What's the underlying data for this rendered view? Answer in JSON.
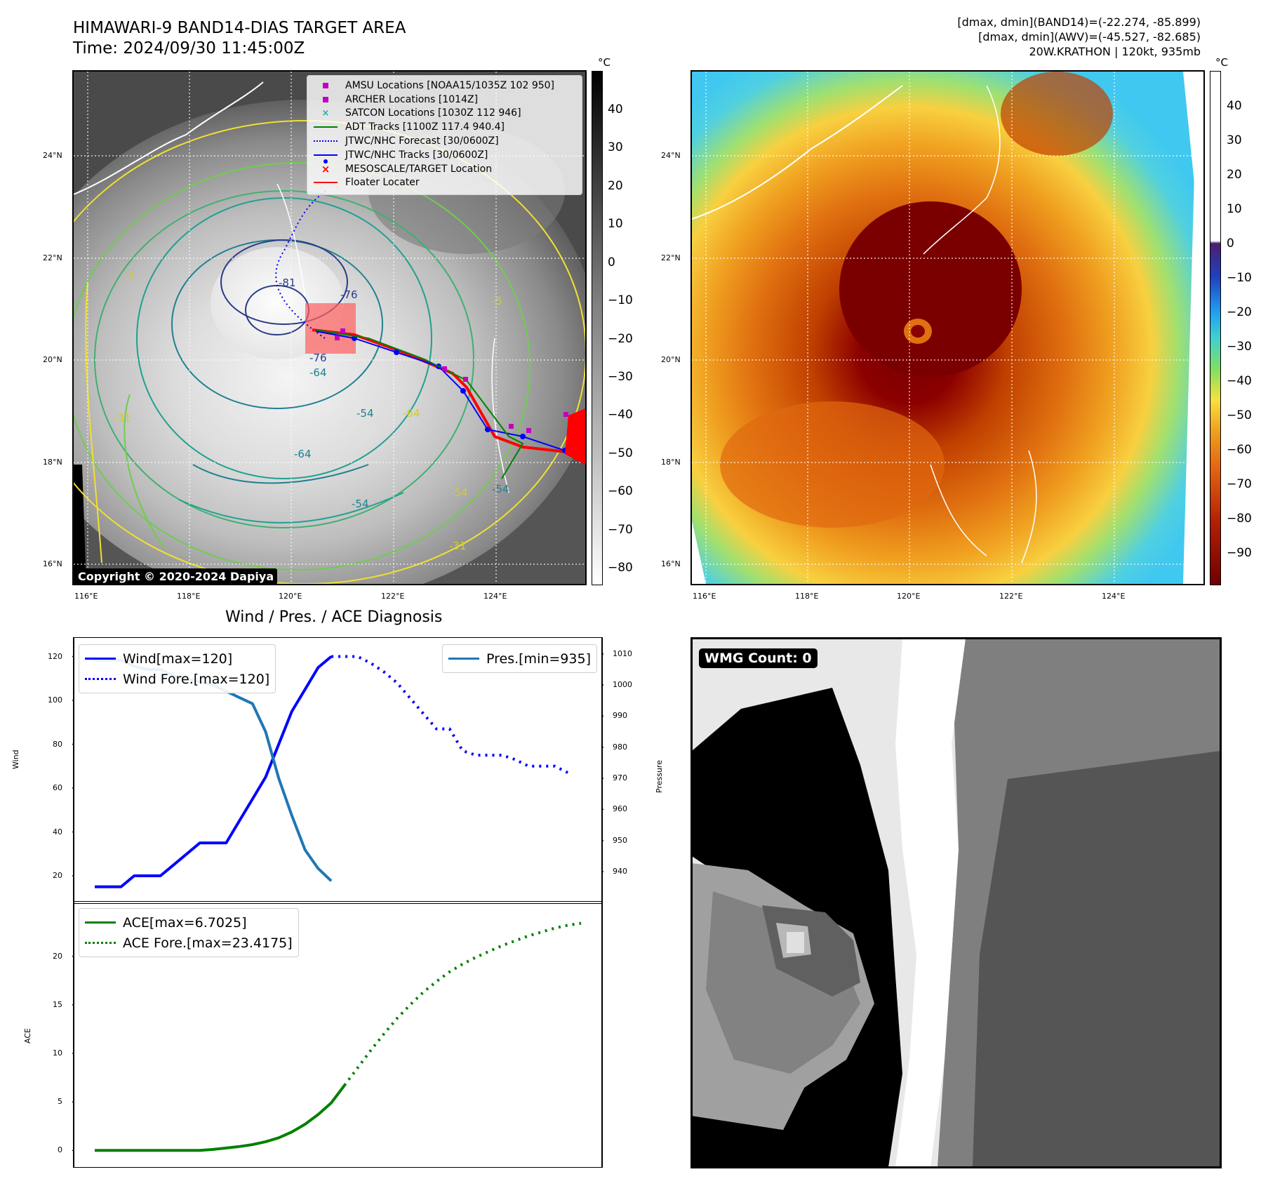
{
  "header": {
    "title_line1": "HIMAWARI-9 BAND14-DIAS TARGET AREA",
    "title_line2": "Time: 2024/09/30 11:45:00Z",
    "right_line1": "[dmax, dmin](BAND14)=(-22.274, -85.899)",
    "right_line2": "[dmax, dmin](AWV)=(-45.527, -82.685)",
    "right_line3": "20W.KRATHON | 120kt, 935mb"
  },
  "maps": {
    "lat_labels": [
      "24°N",
      "22°N",
      "20°N",
      "18°N",
      "16°N"
    ],
    "lon_labels": [
      "116°E",
      "118°E",
      "120°E",
      "122°E",
      "124°E"
    ],
    "copyright": "Copyright © 2020-2024 Dapiya",
    "contour_labels": [
      "-81",
      "-76",
      "-76",
      "-64",
      "-54",
      "-64",
      "-54",
      "-54",
      "-31",
      "-31",
      "-3",
      "-5",
      "-64",
      "-54"
    ],
    "legend": [
      {
        "label": "AMSU Locations [NOAA15/1035Z 102 950]",
        "marker": "square",
        "color": "#c000c0"
      },
      {
        "label": "ARCHER Locations [1014Z]",
        "marker": "square",
        "color": "#c000c0"
      },
      {
        "label": "SATCON Locations [1030Z 112 946]",
        "marker": "x",
        "color": "#20b0b0"
      },
      {
        "label": "ADT Tracks [1100Z 117.4 940.4]",
        "marker": "line",
        "color": "#008000"
      },
      {
        "label": "JTWC/NHC Forecast [30/0600Z]",
        "marker": "dotted",
        "color": "#0000ff"
      },
      {
        "label": "JTWC/NHC Tracks [30/0600Z]",
        "marker": "line-dot",
        "color": "#0000ff"
      },
      {
        "label": "MESOSCALE/TARGET Location",
        "marker": "x",
        "color": "#ff0000"
      },
      {
        "label": "Floater Locater",
        "marker": "line",
        "color": "#ff0000"
      }
    ],
    "left_colorbar": {
      "unit": "°C",
      "ticks": [
        "40",
        "30",
        "20",
        "10",
        "0",
        "−10",
        "−20",
        "−30",
        "−40",
        "−50",
        "−60",
        "−70",
        "−80"
      ]
    },
    "right_colorbar": {
      "unit": "°C",
      "ticks": [
        "40",
        "30",
        "20",
        "10",
        "0",
        "−10",
        "−20",
        "−30",
        "−40",
        "−50",
        "−60",
        "−70",
        "−80",
        "−90"
      ]
    }
  },
  "diagnosis": {
    "title": "Wind / Pres. / ACE Diagnosis",
    "wind_ylabel": "Wind",
    "pres_ylabel": "Pressure",
    "ace_ylabel": "ACE",
    "wmg_badge": "WMG Count: 0"
  },
  "chart_data": [
    {
      "type": "line",
      "title": "Wind / Pres. / ACE Diagnosis",
      "ylabel": "Wind",
      "y2label": "Pressure",
      "ylim": [
        12,
        124
      ],
      "y2lim": [
        933,
        1012
      ],
      "yticks": [
        20,
        40,
        60,
        80,
        100,
        120
      ],
      "y2ticks": [
        940,
        950,
        960,
        970,
        980,
        990,
        1000,
        1010
      ],
      "series": [
        {
          "name": "Wind[max=120]",
          "color": "#0000ff",
          "style": "solid",
          "axis": "left",
          "values": [
            15,
            15,
            15,
            20,
            20,
            20,
            25,
            30,
            35,
            35,
            35,
            45,
            55,
            65,
            80,
            95,
            105,
            115,
            120
          ]
        },
        {
          "name": "Wind Fore.[max=120]",
          "color": "#0000ff",
          "style": "dotted",
          "axis": "left",
          "offset": 18,
          "values": [
            120,
            120,
            120,
            117,
            113,
            108,
            101,
            94,
            87,
            87,
            77,
            75,
            75,
            75,
            73,
            70,
            70,
            70,
            67
          ]
        },
        {
          "name": "Pres.[min=935]",
          "color": "#1f77b4",
          "style": "solid",
          "axis": "right",
          "values": [
            1008,
            1008,
            1008,
            1006,
            1005,
            1005,
            1003,
            1002,
            1001,
            1000,
            998,
            996,
            994,
            985,
            970,
            958,
            947,
            941,
            937
          ]
        }
      ]
    },
    {
      "type": "line",
      "ylabel": "ACE",
      "ylim": [
        -0.7,
        24.6
      ],
      "yticks": [
        0,
        5,
        10,
        15,
        20
      ],
      "series": [
        {
          "name": "ACE[max=6.7025]",
          "color": "#008000",
          "style": "solid",
          "values": [
            0,
            0,
            0,
            0,
            0,
            0,
            0,
            0,
            0,
            0.1,
            0.25,
            0.4,
            0.6,
            0.9,
            1.3,
            1.9,
            2.7,
            3.7,
            4.9,
            6.7
          ]
        },
        {
          "name": "ACE Fore.[max=23.4175]",
          "color": "#008000",
          "style": "dotted",
          "offset": 19,
          "values": [
            6.7,
            8.5,
            10.3,
            12.0,
            13.6,
            15.0,
            16.3,
            17.4,
            18.4,
            19.2,
            19.9,
            20.5,
            21.1,
            21.6,
            22.1,
            22.5,
            22.9,
            23.2,
            23.4
          ]
        }
      ]
    }
  ]
}
